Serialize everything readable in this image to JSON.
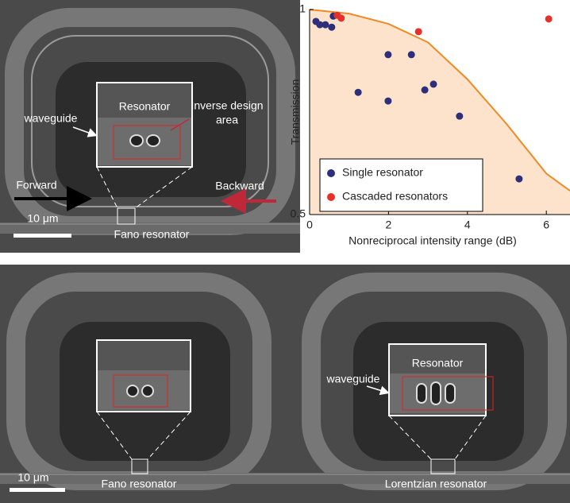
{
  "top_image": {
    "inset_title": "Resonator",
    "inverse_design_label": [
      "Inverse design",
      "area"
    ],
    "waveguide_label": "waveguide",
    "forward_label": "Forward",
    "backward_label": "Backward",
    "scale_label": "10 μm",
    "device_label": "Fano resonator"
  },
  "bottom_image": {
    "left_device_label": "Fano resonator",
    "right_inset_title": "Resonator",
    "right_waveguide_label": "waveguide",
    "scale_label": "10 μm",
    "right_device_label": "Lorentzian resonator"
  },
  "chart_data": {
    "type": "scatter",
    "xlabel": "Nonreciprocal intensity range (dB)",
    "ylabel": "Transmission",
    "xlim": [
      0,
      6.6
    ],
    "ylim": [
      0.5,
      1
    ],
    "xticks": [
      0,
      2,
      4,
      6
    ],
    "yticks": [
      0.5,
      1
    ],
    "legend": "lower-left",
    "curve": {
      "color": "#f08a24",
      "fill": "#fde3cc",
      "x": [
        0,
        1,
        2,
        3,
        4,
        5,
        6,
        6.6
      ],
      "values": [
        1,
        0.99,
        0.965,
        0.92,
        0.83,
        0.72,
        0.6,
        0.558
      ]
    },
    "series": [
      {
        "name": "Single resonator",
        "color": "#2e2f7a",
        "x": [
          0.16,
          0.26,
          0.4,
          0.56,
          0.6,
          1.99,
          2.58,
          1.23,
          1.99,
          2.92,
          3.14,
          3.8,
          5.31
        ],
        "values": [
          0.971,
          0.963,
          0.963,
          0.957,
          0.984,
          0.89,
          0.89,
          0.798,
          0.777,
          0.804,
          0.818,
          0.74,
          0.587
        ]
      },
      {
        "name": "Cascaded resonators",
        "color": "#e8302a",
        "x": [
          0.7,
          0.8,
          2.76,
          6.06
        ],
        "values": [
          0.986,
          0.979,
          0.946,
          0.977
        ]
      }
    ]
  }
}
